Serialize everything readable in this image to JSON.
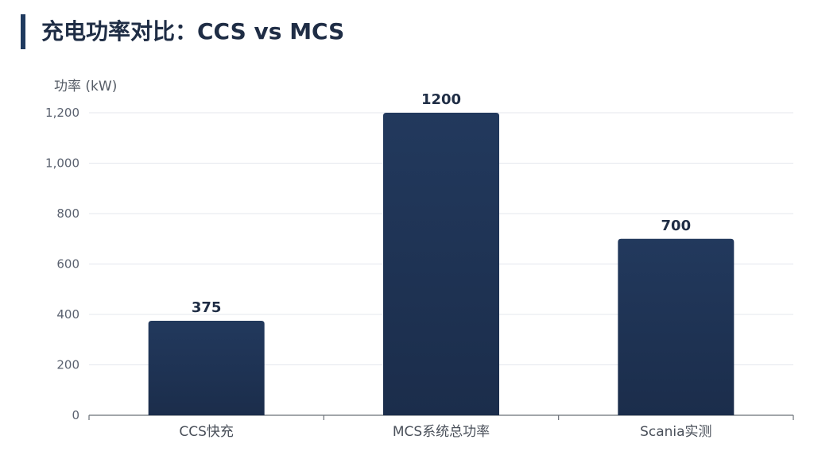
{
  "header": {
    "title": "充电功率对比：CCS vs MCS"
  },
  "chart_data": {
    "type": "bar",
    "title": "充电功率对比：CCS vs MCS",
    "xlabel": "",
    "ylabel": "功率 (kW)",
    "categories": [
      "CCS快充",
      "MCS系统总功率",
      "Scania实测"
    ],
    "values": [
      375,
      1200,
      700
    ],
    "data_labels": [
      "375",
      "1200",
      "700"
    ],
    "ylim": [
      0,
      1200
    ],
    "yticks": [
      0,
      200,
      400,
      600,
      800,
      1000,
      1200
    ],
    "ytick_labels": [
      "0",
      "200",
      "400",
      "600",
      "800",
      "1,000",
      "1,200"
    ],
    "grid": true,
    "bar_color": "#1f3a5f"
  }
}
